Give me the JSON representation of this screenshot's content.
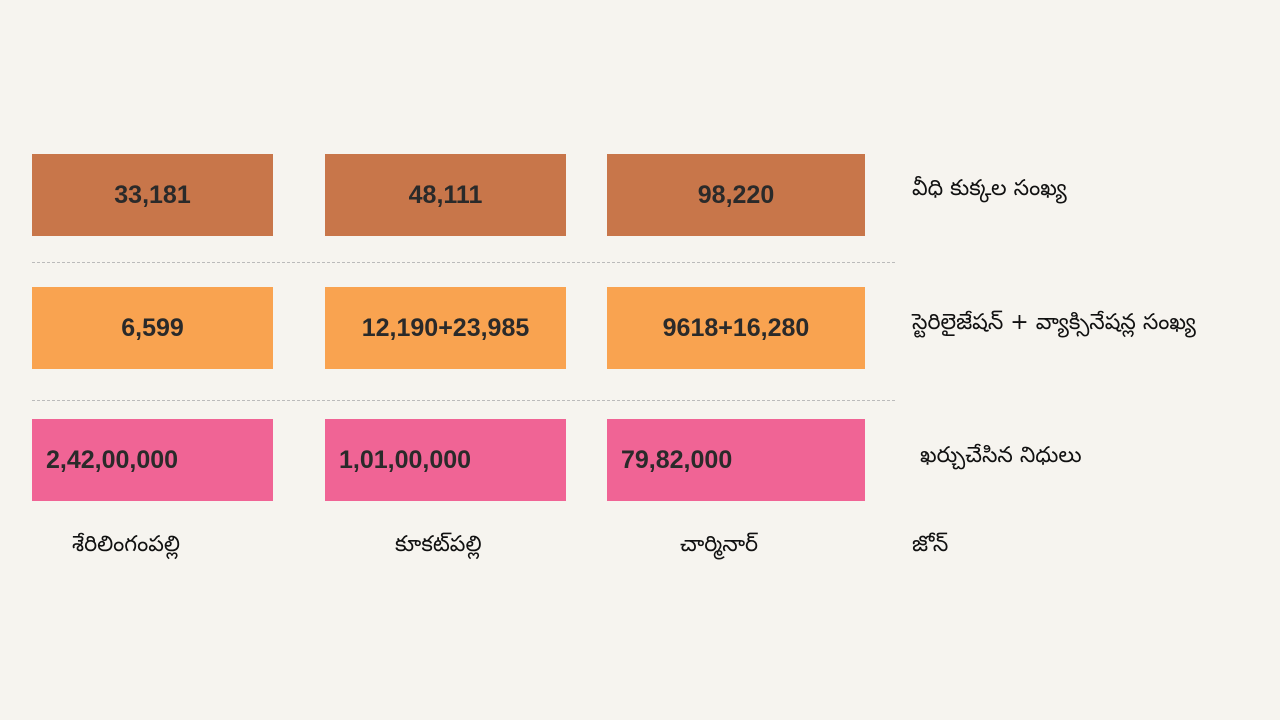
{
  "chart_data": {
    "type": "table",
    "columns": [
      "శేరిలింగంపల్లి",
      "కూకట్‌పల్లి",
      "చార్మినార్"
    ],
    "column_header_label": "జోన్",
    "rows": [
      {
        "label": "వీధి కుక్కల సంఖ్య",
        "values": [
          "33,181",
          "48,111",
          "98,220"
        ],
        "color": "#C8764A"
      },
      {
        "label": "స్టెరిలైజేషన్ + వ్యాక్సినేషన్ల సంఖ్య",
        "values": [
          "6,599",
          "12,190+23,985",
          "9618+16,280"
        ],
        "color": "#F9A350"
      },
      {
        "label": "ఖర్చుచేసిన నిధులు",
        "values": [
          "2,42,00,000",
          "1,01,00,000",
          "79,82,000"
        ],
        "color": "#F06495"
      }
    ]
  }
}
